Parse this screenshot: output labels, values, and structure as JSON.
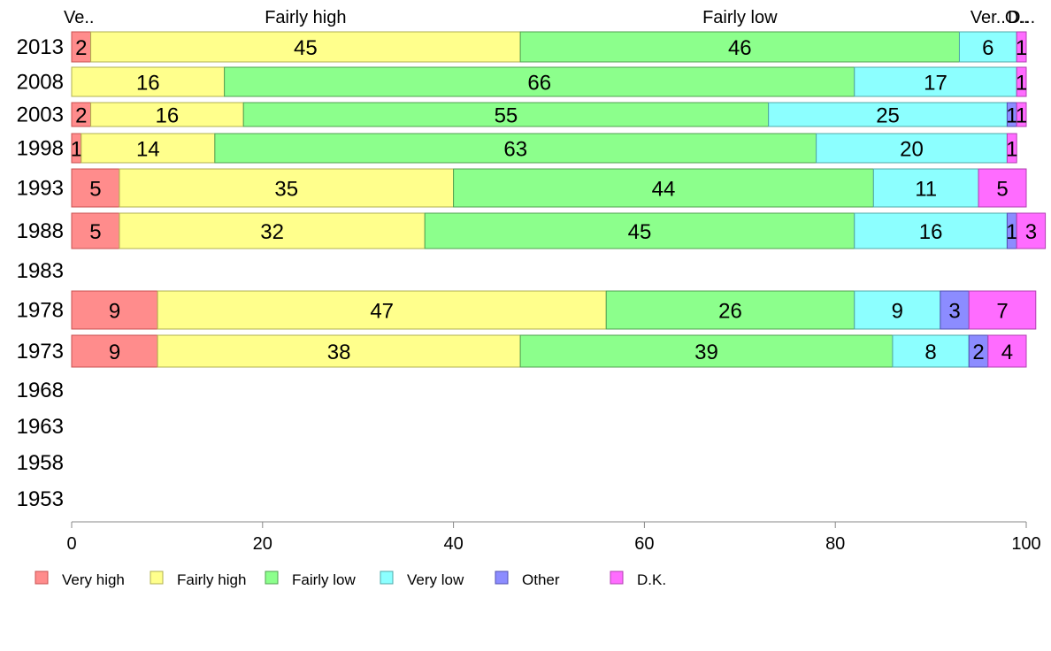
{
  "chart_data": {
    "type": "bar",
    "orientation": "horizontal",
    "stacked": true,
    "categories": [
      "2013",
      "2008",
      "2003",
      "1998",
      "1993",
      "1988",
      "1983",
      "1978",
      "1973",
      "1968",
      "1963",
      "1958",
      "1953"
    ],
    "series": [
      {
        "name": "Very high",
        "color": "#ff8c8c",
        "values": [
          2,
          0,
          2,
          1,
          5,
          5,
          null,
          9,
          9,
          null,
          null,
          null,
          null
        ]
      },
      {
        "name": "Fairly high",
        "color": "#ffff8c",
        "values": [
          45,
          16,
          16,
          14,
          35,
          32,
          null,
          47,
          38,
          null,
          null,
          null,
          null
        ]
      },
      {
        "name": "Fairly low",
        "color": "#8cff8c",
        "values": [
          46,
          66,
          55,
          63,
          44,
          45,
          null,
          26,
          39,
          null,
          null,
          null,
          null
        ]
      },
      {
        "name": "Very low",
        "color": "#8cffff",
        "values": [
          6,
          17,
          25,
          20,
          11,
          16,
          null,
          9,
          8,
          null,
          null,
          null,
          null
        ]
      },
      {
        "name": "Other",
        "color": "#8c8cff",
        "values": [
          0,
          0,
          1,
          0,
          0,
          1,
          null,
          3,
          2,
          null,
          null,
          null,
          null
        ]
      },
      {
        "name": "D.K.",
        "color": "#ff6cff",
        "values": [
          1,
          1,
          1,
          1,
          5,
          3,
          null,
          7,
          4,
          null,
          null,
          null,
          null
        ]
      }
    ],
    "top_labels": [
      "Ve..",
      "Fairly high",
      "Fairly low",
      "Ver..",
      "O..",
      "D..."
    ],
    "xlim": [
      0,
      100
    ],
    "xticks": [
      0,
      20,
      40,
      60,
      80,
      100
    ],
    "grid": false,
    "legend_position": "bottom"
  }
}
